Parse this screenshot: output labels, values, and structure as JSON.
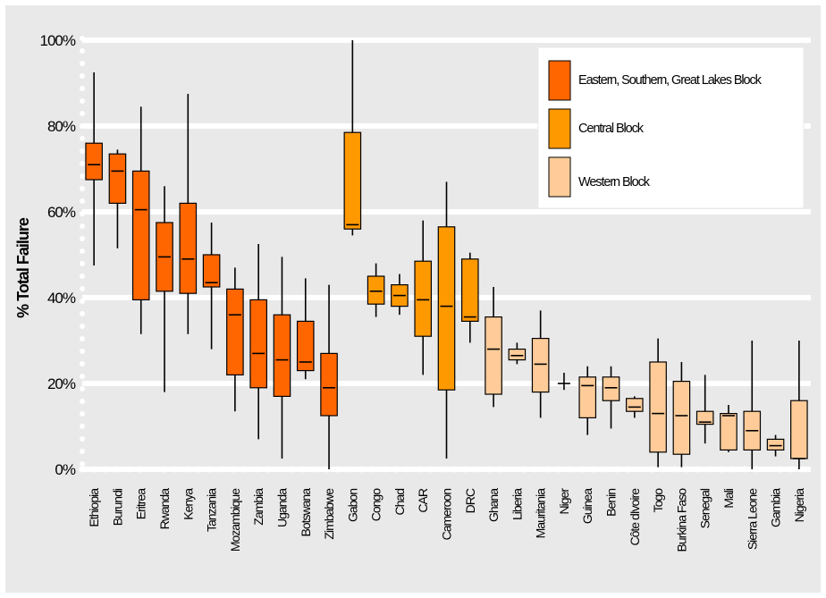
{
  "chart_data": {
    "type": "box",
    "title": "",
    "xlabel": "",
    "ylabel": "% Total Failure",
    "ylim": [
      0,
      100
    ],
    "yticks": [
      "0%",
      "20%",
      "40%",
      "60%",
      "80%",
      "100%"
    ],
    "grid": true,
    "legend_position": "top-right",
    "groups": [
      {
        "name": "Eastern, Southern, Great Lakes Block",
        "color": "#FF6600"
      },
      {
        "name": "Central Block",
        "color": "#FF9900"
      },
      {
        "name": "Western Block",
        "color": "#FFCC99"
      }
    ],
    "categories": [
      "Ethiopia",
      "Burundi",
      "Eritrea",
      "Rwanda",
      "Kenya",
      "Tanzania",
      "Mozambique",
      "Zambia",
      "Uganda",
      "Botswana",
      "Zimbabwe",
      "Gabon",
      "Congo",
      "Chad",
      "CAR",
      "Cameroon",
      "DRC",
      "Ghana",
      "Liberia",
      "Mauritania",
      "Niger",
      "Guinea",
      "Benin",
      "Côte dIvoire",
      "Togo",
      "Burkina Faso",
      "Senegal",
      "Mali",
      "Sierra Leone",
      "Gambia",
      "Nigeria"
    ],
    "category_group": [
      0,
      0,
      0,
      0,
      0,
      0,
      0,
      0,
      0,
      0,
      0,
      1,
      1,
      1,
      1,
      1,
      1,
      2,
      2,
      2,
      2,
      2,
      2,
      2,
      2,
      2,
      2,
      2,
      2,
      2,
      2
    ],
    "boxes": [
      {
        "min": 47.5,
        "q1": 67.5,
        "median": 71,
        "q3": 76,
        "max": 92.5
      },
      {
        "min": 51.5,
        "q1": 62,
        "median": 69.5,
        "q3": 73.5,
        "max": 74.5
      },
      {
        "min": 31.5,
        "q1": 39.5,
        "median": 60.5,
        "q3": 69.5,
        "max": 84.5
      },
      {
        "min": 18,
        "q1": 41.5,
        "median": 49.5,
        "q3": 57.5,
        "max": 66
      },
      {
        "min": 31.5,
        "q1": 41,
        "median": 49,
        "q3": 62,
        "max": 87.5
      },
      {
        "min": 28,
        "q1": 42.5,
        "median": 43.5,
        "q3": 50,
        "max": 57.5
      },
      {
        "min": 13.5,
        "q1": 22,
        "median": 36,
        "q3": 42,
        "max": 47
      },
      {
        "min": 7,
        "q1": 19,
        "median": 27,
        "q3": 39.5,
        "max": 52.5
      },
      {
        "min": 2.5,
        "q1": 17,
        "median": 25.5,
        "q3": 36,
        "max": 49.5
      },
      {
        "min": 21,
        "q1": 23,
        "median": 25,
        "q3": 34.5,
        "max": 44.5
      },
      {
        "min": 0,
        "q1": 12.5,
        "median": 19,
        "q3": 27,
        "max": 43
      },
      {
        "min": 54.5,
        "q1": 56,
        "median": 57,
        "q3": 78.5,
        "max": 100
      },
      {
        "min": 35.5,
        "q1": 38.5,
        "median": 41.5,
        "q3": 45,
        "max": 48
      },
      {
        "min": 36,
        "q1": 38,
        "median": 40.5,
        "q3": 43,
        "max": 45.5
      },
      {
        "min": 22,
        "q1": 31,
        "median": 39.5,
        "q3": 48.5,
        "max": 58
      },
      {
        "min": 2.5,
        "q1": 18.5,
        "median": 38,
        "q3": 56.5,
        "max": 67
      },
      {
        "min": 29.5,
        "q1": 34.5,
        "median": 35.5,
        "q3": 49,
        "max": 50.5
      },
      {
        "min": 14.5,
        "q1": 17.5,
        "median": 28,
        "q3": 35.5,
        "max": 42.5
      },
      {
        "min": 24.5,
        "q1": 25.5,
        "median": 26.5,
        "q3": 28,
        "max": 29.5
      },
      {
        "min": 12,
        "q1": 18,
        "median": 24.5,
        "q3": 30.5,
        "max": 37
      },
      {
        "min": 18.5,
        "q1": 20,
        "median": 20,
        "q3": 20,
        "max": 22.5
      },
      {
        "min": 8,
        "q1": 12,
        "median": 19.5,
        "q3": 21.5,
        "max": 24
      },
      {
        "min": 9.5,
        "q1": 16,
        "median": 19,
        "q3": 21.5,
        "max": 24
      },
      {
        "min": 12,
        "q1": 13.5,
        "median": 14.5,
        "q3": 16.5,
        "max": 17
      },
      {
        "min": 0.5,
        "q1": 4,
        "median": 13,
        "q3": 25,
        "max": 30.5
      },
      {
        "min": 0.5,
        "q1": 3.5,
        "median": 12.5,
        "q3": 20.5,
        "max": 25
      },
      {
        "min": 6,
        "q1": 10.5,
        "median": 11,
        "q3": 13.5,
        "max": 22
      },
      {
        "min": 4,
        "q1": 4.5,
        "median": 12.5,
        "q3": 13,
        "max": 15
      },
      {
        "min": 0,
        "q1": 4.5,
        "median": 9,
        "q3": 13.5,
        "max": 30
      },
      {
        "min": 3,
        "q1": 4.5,
        "median": 5.5,
        "q3": 7,
        "max": 8
      },
      {
        "min": 0,
        "q1": 2.5,
        "median": 2.5,
        "q3": 16,
        "max": 30
      }
    ]
  }
}
